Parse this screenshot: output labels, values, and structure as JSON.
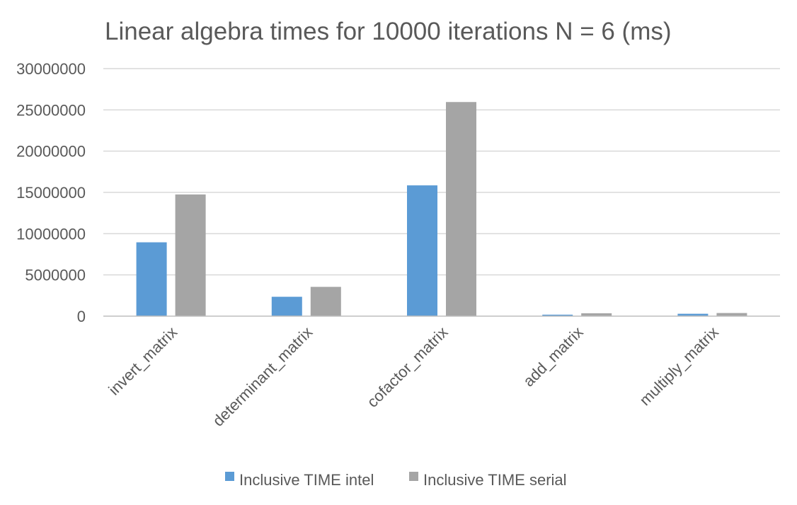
{
  "chart_data": {
    "type": "bar",
    "title": "Linear algebra times for 10000 iterations N = 6 (ms)",
    "xlabel": "",
    "ylabel": "",
    "categories": [
      "invert_matrix",
      "determinant_matrix",
      "cofactor_matrix",
      "add_matrix",
      "multiply_matrix"
    ],
    "series": [
      {
        "name": "Inclusive TIME intel",
        "color": "#5b9bd5",
        "values": [
          8950000,
          2350000,
          15850000,
          180000,
          290000
        ]
      },
      {
        "name": "Inclusive TIME serial",
        "color": "#a5a5a5",
        "values": [
          14750000,
          3550000,
          25950000,
          350000,
          380000
        ]
      }
    ],
    "ylim": [
      0,
      30000000
    ],
    "yticks": [
      0,
      5000000,
      10000000,
      15000000,
      20000000,
      25000000,
      30000000
    ],
    "ytick_labels": [
      "0",
      "5000000",
      "10000000",
      "15000000",
      "20000000",
      "25000000",
      "30000000"
    ],
    "grid": true,
    "legend_position": "bottom"
  }
}
